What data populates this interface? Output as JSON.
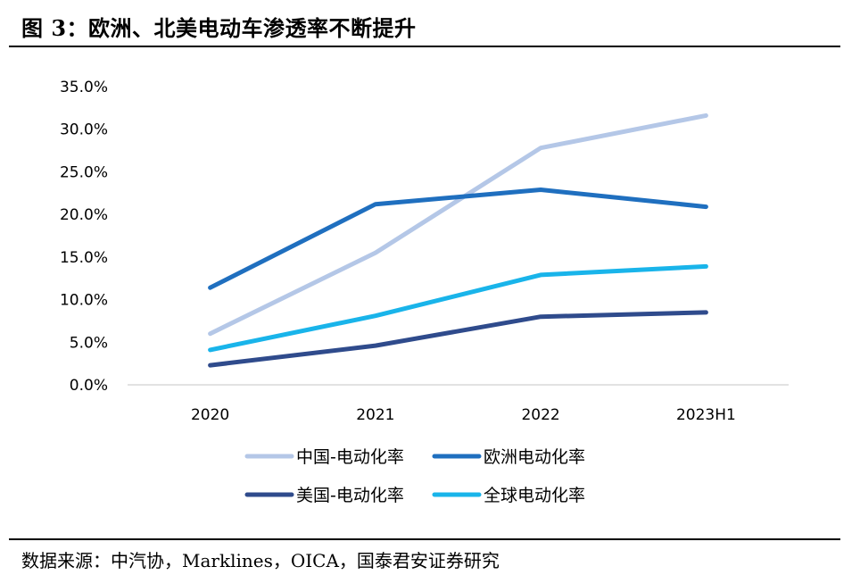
{
  "header": {
    "title": "图 3：欧洲、北美电动车渗透率不断提升"
  },
  "footer": {
    "source": "数据来源：中汽协，Marklines，OICA，国泰君安证券研究"
  },
  "chart_data": {
    "type": "line",
    "title": "图 3：欧洲、北美电动车渗透率不断提升",
    "xlabel": "",
    "ylabel": "",
    "categories": [
      "2020",
      "2021",
      "2022",
      "2023H1"
    ],
    "ylim": [
      0,
      35
    ],
    "yticks": [
      "0.0%",
      "5.0%",
      "10.0%",
      "15.0%",
      "20.0%",
      "25.0%",
      "30.0%",
      "35.0%"
    ],
    "grid": false,
    "legend_position": "bottom",
    "series": [
      {
        "name": "中国-电动化率",
        "values": [
          6.0,
          15.5,
          27.8,
          31.6
        ],
        "color": "#b4c7e7"
      },
      {
        "name": "欧洲电动化率",
        "values": [
          11.4,
          21.2,
          22.9,
          20.9
        ],
        "color": "#1f6fbf"
      },
      {
        "name": "美国-电动化率",
        "values": [
          2.3,
          4.6,
          8.0,
          8.5
        ],
        "color": "#2f4b8c"
      },
      {
        "name": "全球电动化率",
        "values": [
          4.1,
          8.1,
          12.9,
          13.9
        ],
        "color": "#19b4ea"
      }
    ]
  }
}
